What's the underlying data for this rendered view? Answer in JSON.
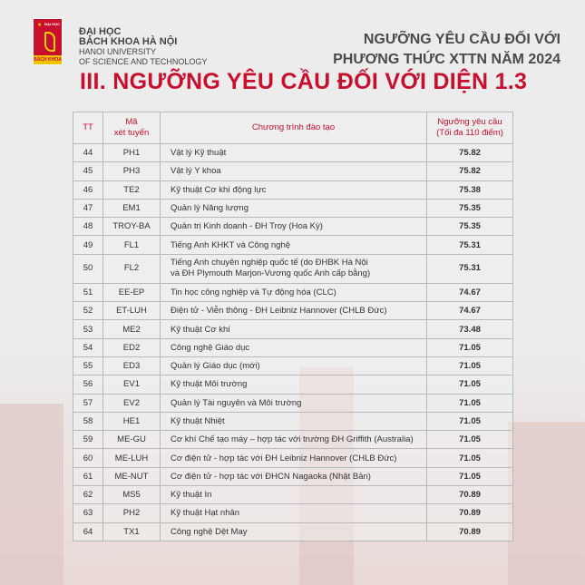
{
  "logo": {
    "top_text": "ĐẠI HỌC",
    "bottom_text": "BÁCH KHOA"
  },
  "university": {
    "line1": "ĐẠI HỌC",
    "line2": "BÁCH KHOA HÀ NỘI",
    "line3": "HANOI UNIVERSITY",
    "line4": "OF SCIENCE AND TECHNOLOGY"
  },
  "header": {
    "line1": "NGƯỠNG YÊU CẦU ĐỐI VỚI",
    "line2": "PHƯƠNG THỨC XTTN NĂM 2024"
  },
  "title": "III. NGƯỠNG YÊU CẦU ĐỐI VỚI DIỆN 1.3",
  "table": {
    "headers": {
      "tt": "TT",
      "ma_1": "Mã",
      "ma_2": "xét tuyển",
      "program": "Chương trình đào tạo",
      "score_1": "Ngưỡng yêu cầu",
      "score_2": "(Tối đa 110 điểm)"
    },
    "rows": [
      {
        "tt": "44",
        "code": "PH1",
        "program": "Vật lý Kỹ thuật",
        "score": "75.82"
      },
      {
        "tt": "45",
        "code": "PH3",
        "program": "Vật lý Y khoa",
        "score": "75.82"
      },
      {
        "tt": "46",
        "code": "TE2",
        "program": "Kỹ thuật Cơ khí động lực",
        "score": "75.38"
      },
      {
        "tt": "47",
        "code": "EM1",
        "program": "Quản lý Năng lượng",
        "score": "75.35"
      },
      {
        "tt": "48",
        "code": "TROY-BA",
        "program": "Quản trị Kinh doanh - ĐH Troy (Hoa Kỳ)",
        "score": "75.35"
      },
      {
        "tt": "49",
        "code": "FL1",
        "program": "Tiếng Anh KHKT và Công nghệ",
        "score": "75.31"
      },
      {
        "tt": "50",
        "code": "FL2",
        "program": "Tiếng Anh chuyên nghiệp quốc tế (do ĐHBK Hà Nội",
        "program_2": "và ĐH Plymouth Marjon-Vương quốc Anh cấp bằng)",
        "score": "75.31"
      },
      {
        "tt": "51",
        "code": "EE-EP",
        "program": "Tin học công nghiệp và Tự động hóa (CLC)",
        "score": "74.67"
      },
      {
        "tt": "52",
        "code": "ET-LUH",
        "program": "Điện tử - Viễn thông - ĐH Leibniz Hannover (CHLB Đức)",
        "score": "74.67"
      },
      {
        "tt": "53",
        "code": "ME2",
        "program": "Kỹ thuật Cơ khí",
        "score": "73.48"
      },
      {
        "tt": "54",
        "code": "ED2",
        "program": "Công nghệ Giáo dục",
        "score": "71.05"
      },
      {
        "tt": "55",
        "code": "ED3",
        "program": "Quản lý Giáo dục (mới)",
        "score": "71.05"
      },
      {
        "tt": "56",
        "code": "EV1",
        "program": "Kỹ thuật Môi trường",
        "score": "71.05"
      },
      {
        "tt": "57",
        "code": "EV2",
        "program": "Quản lý Tài nguyên và Môi trường",
        "score": "71.05"
      },
      {
        "tt": "58",
        "code": "HE1",
        "program": "Kỹ thuật Nhiệt",
        "score": "71.05"
      },
      {
        "tt": "59",
        "code": "ME-GU",
        "program": "Cơ khí Chế tạo máy – hợp tác với trường ĐH Griffith (Australia)",
        "score": "71.05"
      },
      {
        "tt": "60",
        "code": "ME-LUH",
        "program": "Cơ điện tử - hợp tác với ĐH Leibniz Hannover (CHLB Đức)",
        "score": "71.05"
      },
      {
        "tt": "61",
        "code": "ME-NUT",
        "program": "Cơ điện tử - hợp tác với ĐHCN Nagaoka (Nhật Bản)",
        "score": "71.05"
      },
      {
        "tt": "62",
        "code": "MS5",
        "program": "Kỹ thuật In",
        "score": "70.89"
      },
      {
        "tt": "63",
        "code": "PH2",
        "program": "Kỹ thuật Hạt nhân",
        "score": "70.89"
      },
      {
        "tt": "64",
        "code": "TX1",
        "program": "Công nghệ Dệt May",
        "score": "70.89"
      }
    ]
  },
  "colors": {
    "accent": "#c8102e",
    "text": "#333333",
    "background": "#ececec"
  }
}
